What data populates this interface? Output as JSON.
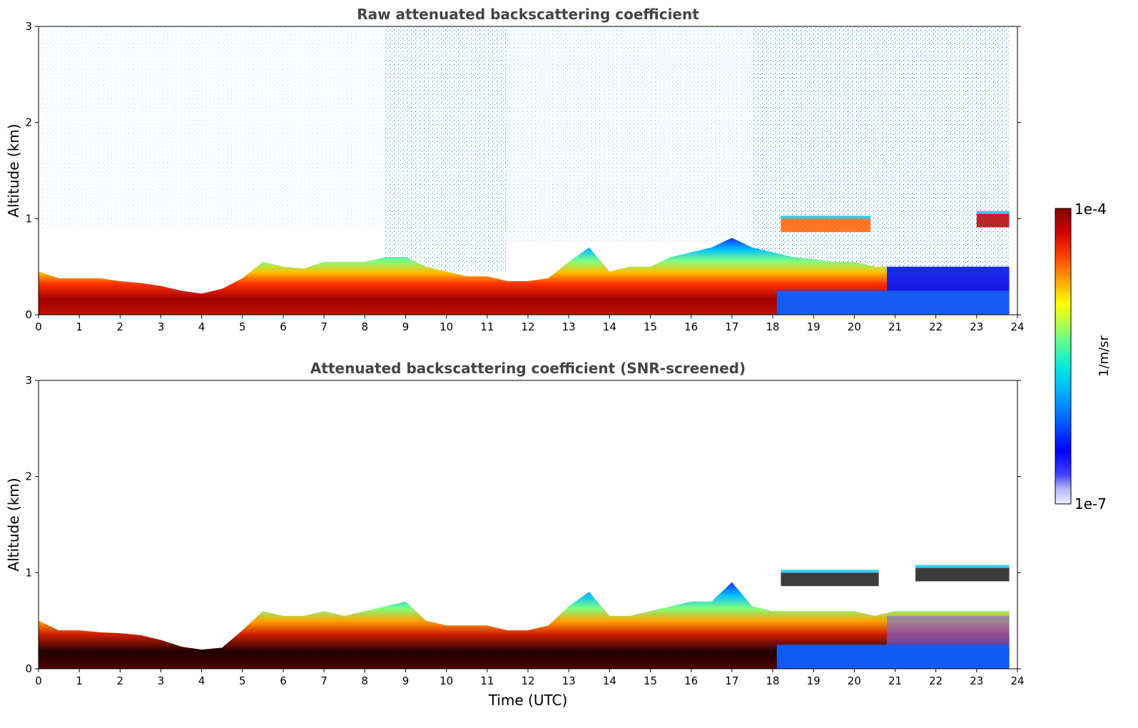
{
  "chart_data": [
    {
      "type": "heatmap",
      "title": "Raw attenuated backscattering coefficient",
      "ylabel": "Altitude (km)",
      "xlabel": "",
      "xlim": [
        0,
        24
      ],
      "ylim": [
        0,
        3
      ],
      "xticks": [
        "0",
        "1",
        "2",
        "3",
        "4",
        "5",
        "6",
        "7",
        "8",
        "9",
        "10",
        "11",
        "12",
        "13",
        "14",
        "15",
        "16",
        "17",
        "18",
        "19",
        "20",
        "21",
        "22",
        "23",
        "24"
      ],
      "yticks": [
        "0",
        "1",
        "2",
        "3"
      ],
      "boundary_layer_top_km": [
        [
          0,
          0.45
        ],
        [
          0.5,
          0.38
        ],
        [
          1,
          0.38
        ],
        [
          1.5,
          0.38
        ],
        [
          2,
          0.35
        ],
        [
          2.5,
          0.33
        ],
        [
          3,
          0.3
        ],
        [
          3.5,
          0.25
        ],
        [
          4,
          0.22
        ],
        [
          4.5,
          0.27
        ],
        [
          5,
          0.38
        ],
        [
          5.5,
          0.55
        ],
        [
          6,
          0.5
        ],
        [
          6.5,
          0.48
        ],
        [
          7,
          0.55
        ],
        [
          7.5,
          0.55
        ],
        [
          8,
          0.55
        ],
        [
          8.5,
          0.6
        ],
        [
          9,
          0.6
        ],
        [
          9.5,
          0.5
        ],
        [
          10,
          0.45
        ],
        [
          10.5,
          0.4
        ],
        [
          11,
          0.4
        ],
        [
          11.5,
          0.35
        ],
        [
          12,
          0.35
        ],
        [
          12.5,
          0.38
        ],
        [
          13,
          0.55
        ],
        [
          13.5,
          0.7
        ],
        [
          14,
          0.45
        ],
        [
          14.5,
          0.5
        ],
        [
          15,
          0.5
        ],
        [
          15.5,
          0.6
        ],
        [
          16,
          0.65
        ],
        [
          16.5,
          0.7
        ],
        [
          17,
          0.8
        ],
        [
          17.5,
          0.7
        ],
        [
          18,
          0.65
        ],
        [
          18.5,
          0.6
        ],
        [
          19,
          0.58
        ],
        [
          19.5,
          0.55
        ],
        [
          20,
          0.55
        ],
        [
          20.5,
          0.5
        ],
        [
          21,
          0.5
        ],
        [
          22,
          0.5
        ],
        [
          23,
          0.5
        ],
        [
          23.8,
          0.5
        ]
      ],
      "elevated_layers_km": [
        {
          "t_start": 18.2,
          "t_end": 20.4,
          "altitude": 0.93
        },
        {
          "t_start": 23.0,
          "t_end": 23.8,
          "altitude": 0.98
        }
      ]
    },
    {
      "type": "heatmap",
      "title": "Attenuated backscattering coefficient (SNR-screened)",
      "ylabel": "Altitude (km)",
      "xlabel": "Time (UTC)",
      "xlim": [
        0,
        24
      ],
      "ylim": [
        0,
        3
      ],
      "xticks": [
        "0",
        "1",
        "2",
        "3",
        "4",
        "5",
        "6",
        "7",
        "8",
        "9",
        "10",
        "11",
        "12",
        "13",
        "14",
        "15",
        "16",
        "17",
        "18",
        "19",
        "20",
        "21",
        "22",
        "23",
        "24"
      ],
      "yticks": [
        "0",
        "1",
        "2",
        "3"
      ],
      "boundary_layer_top_km": [
        [
          0,
          0.5
        ],
        [
          0.5,
          0.4
        ],
        [
          1,
          0.4
        ],
        [
          1.5,
          0.38
        ],
        [
          2,
          0.37
        ],
        [
          2.5,
          0.35
        ],
        [
          3,
          0.3
        ],
        [
          3.5,
          0.23
        ],
        [
          4,
          0.2
        ],
        [
          4.5,
          0.22
        ],
        [
          5,
          0.4
        ],
        [
          5.5,
          0.6
        ],
        [
          6,
          0.55
        ],
        [
          6.5,
          0.55
        ],
        [
          7,
          0.6
        ],
        [
          7.5,
          0.55
        ],
        [
          8,
          0.6
        ],
        [
          8.5,
          0.65
        ],
        [
          9,
          0.7
        ],
        [
          9.5,
          0.5
        ],
        [
          10,
          0.45
        ],
        [
          10.5,
          0.45
        ],
        [
          11,
          0.45
        ],
        [
          11.5,
          0.4
        ],
        [
          12,
          0.4
        ],
        [
          12.5,
          0.45
        ],
        [
          13,
          0.65
        ],
        [
          13.5,
          0.8
        ],
        [
          14,
          0.55
        ],
        [
          14.5,
          0.55
        ],
        [
          15,
          0.6
        ],
        [
          15.5,
          0.65
        ],
        [
          16,
          0.7
        ],
        [
          16.5,
          0.7
        ],
        [
          17,
          0.9
        ],
        [
          17.5,
          0.65
        ],
        [
          18,
          0.6
        ],
        [
          18.5,
          0.6
        ],
        [
          19,
          0.6
        ],
        [
          19.5,
          0.6
        ],
        [
          20,
          0.6
        ],
        [
          20.5,
          0.55
        ],
        [
          21,
          0.6
        ],
        [
          22,
          0.6
        ],
        [
          23,
          0.6
        ],
        [
          23.8,
          0.6
        ]
      ],
      "elevated_layers_km": [
        {
          "t_start": 18.2,
          "t_end": 20.6,
          "altitude": 0.93
        },
        {
          "t_start": 21.5,
          "t_end": 23.8,
          "altitude": 0.98
        }
      ]
    }
  ],
  "colorbar": {
    "max_label": "1e-4",
    "min_label": "1e-7",
    "unit": "1/m/sr",
    "colors": [
      "#eeeeff",
      "#c8c8f5",
      "#8c8cf0",
      "#0000ff",
      "#0050ff",
      "#00a0ff",
      "#00e0ff",
      "#40ffc0",
      "#a0ff60",
      "#ffff00",
      "#ffc000",
      "#ff8000",
      "#ff3000",
      "#e00000",
      "#a00000",
      "#7f0000"
    ]
  }
}
